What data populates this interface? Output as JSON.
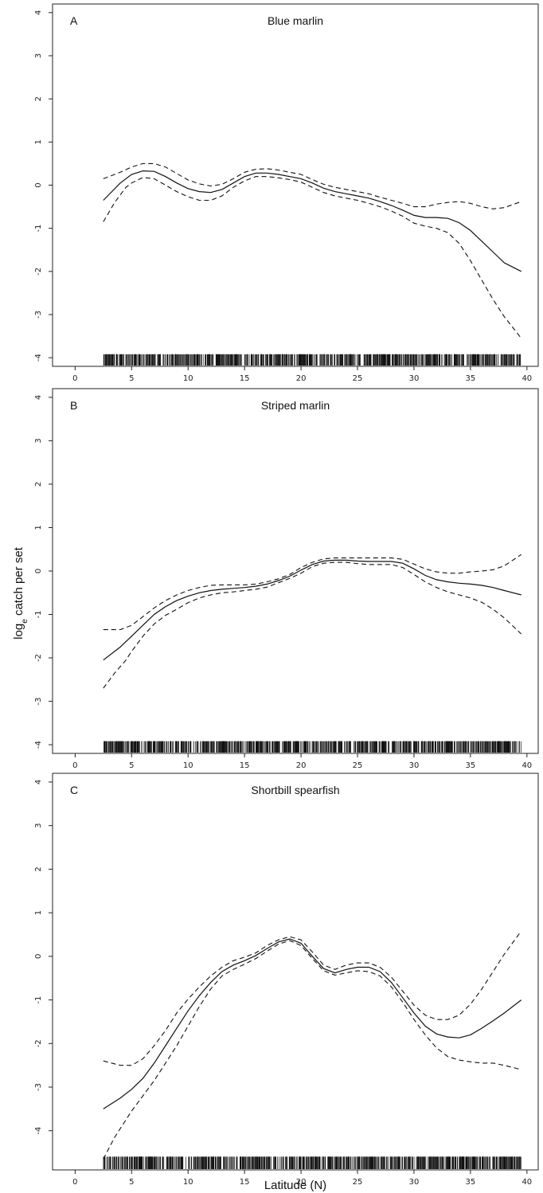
{
  "figure": {
    "xlabel": "Latitude (N)",
    "ylabel_main": "log",
    "ylabel_sub": "e",
    "ylabel_rest": " catch per set"
  },
  "chart_data": [
    {
      "type": "line",
      "panel": "A",
      "title": "Blue marlin",
      "xlim": [
        -2,
        41
      ],
      "ylim": [
        -4.2,
        4.2
      ],
      "xticks": [
        0,
        5,
        10,
        15,
        20,
        25,
        30,
        35,
        40
      ],
      "yticks": [
        -4,
        -3,
        -2,
        -1,
        0,
        1,
        2,
        3,
        4
      ],
      "grid": false,
      "series": [
        {
          "style": "solid",
          "x": [
            2.5,
            4,
            5,
            6,
            7,
            8,
            9,
            10,
            11,
            12,
            13,
            14,
            15,
            16,
            17,
            18,
            19,
            20,
            21,
            22,
            23,
            24,
            25,
            26,
            27,
            28,
            29,
            30,
            31,
            32,
            33,
            34,
            35,
            36,
            37,
            38,
            39.5
          ],
          "y": [
            -0.35,
            0.05,
            0.25,
            0.33,
            0.32,
            0.2,
            0.05,
            -0.08,
            -0.15,
            -0.17,
            -0.1,
            0.05,
            0.2,
            0.28,
            0.28,
            0.25,
            0.2,
            0.15,
            0.05,
            -0.07,
            -0.15,
            -0.2,
            -0.25,
            -0.3,
            -0.38,
            -0.47,
            -0.58,
            -0.7,
            -0.75,
            -0.75,
            -0.77,
            -0.87,
            -1.05,
            -1.3,
            -1.55,
            -1.8,
            -2.0
          ]
        },
        {
          "style": "dashed",
          "x": [
            2.5,
            4,
            5,
            6,
            7,
            8,
            9,
            10,
            11,
            12,
            13,
            14,
            15,
            16,
            17,
            18,
            19,
            20,
            21,
            22,
            23,
            24,
            25,
            26,
            27,
            28,
            29,
            30,
            31,
            32,
            33,
            34,
            35,
            36,
            37,
            38,
            39.5
          ],
          "y": [
            0.15,
            0.3,
            0.42,
            0.5,
            0.5,
            0.42,
            0.27,
            0.12,
            0.03,
            -0.02,
            0.02,
            0.15,
            0.3,
            0.37,
            0.38,
            0.35,
            0.3,
            0.25,
            0.13,
            0.02,
            -0.05,
            -0.1,
            -0.15,
            -0.2,
            -0.28,
            -0.35,
            -0.42,
            -0.5,
            -0.5,
            -0.44,
            -0.4,
            -0.38,
            -0.42,
            -0.5,
            -0.55,
            -0.52,
            -0.38
          ]
        },
        {
          "style": "dashed",
          "x": [
            2.5,
            3.5,
            4.5,
            5,
            6,
            7,
            8,
            9,
            10,
            11,
            12,
            13,
            14,
            15,
            16,
            17,
            18,
            19,
            20,
            21,
            22,
            23,
            24,
            25,
            26,
            27,
            28,
            29,
            30,
            31,
            32,
            33,
            34,
            35,
            36,
            37,
            38,
            39.5
          ],
          "y": [
            -0.85,
            -0.4,
            -0.05,
            0.05,
            0.18,
            0.15,
            0.0,
            -0.15,
            -0.27,
            -0.35,
            -0.35,
            -0.25,
            -0.05,
            0.1,
            0.2,
            0.2,
            0.17,
            0.13,
            0.07,
            -0.05,
            -0.17,
            -0.25,
            -0.3,
            -0.35,
            -0.42,
            -0.5,
            -0.6,
            -0.72,
            -0.88,
            -0.95,
            -1.0,
            -1.1,
            -1.35,
            -1.75,
            -2.2,
            -2.65,
            -3.05,
            -3.55
          ]
        }
      ]
    },
    {
      "type": "line",
      "panel": "B",
      "title": "Striped marlin",
      "xlim": [
        -2,
        41
      ],
      "ylim": [
        -4.2,
        4.2
      ],
      "xticks": [
        0,
        5,
        10,
        15,
        20,
        25,
        30,
        35,
        40
      ],
      "yticks": [
        -4,
        -3,
        -2,
        -1,
        0,
        1,
        2,
        3,
        4
      ],
      "grid": false,
      "series": [
        {
          "style": "solid",
          "x": [
            2.5,
            4,
            5,
            6,
            7,
            8,
            9,
            10,
            11,
            12,
            13,
            14,
            15,
            16,
            17,
            18,
            19,
            20,
            21,
            22,
            23,
            24,
            25,
            26,
            27,
            28,
            29,
            30,
            31,
            32,
            33,
            34,
            35,
            36,
            37,
            38,
            39.5
          ],
          "y": [
            -2.05,
            -1.75,
            -1.5,
            -1.25,
            -1.0,
            -0.82,
            -0.68,
            -0.58,
            -0.5,
            -0.45,
            -0.42,
            -0.4,
            -0.38,
            -0.35,
            -0.3,
            -0.22,
            -0.12,
            0.02,
            0.15,
            0.23,
            0.25,
            0.25,
            0.23,
            0.22,
            0.22,
            0.22,
            0.18,
            0.05,
            -0.1,
            -0.2,
            -0.25,
            -0.28,
            -0.3,
            -0.33,
            -0.38,
            -0.45,
            -0.55
          ]
        },
        {
          "style": "dashed",
          "x": [
            2.5,
            4,
            5,
            6,
            7,
            8,
            9,
            10,
            11,
            12,
            13,
            14,
            15,
            16,
            17,
            18,
            19,
            20,
            21,
            22,
            23,
            24,
            25,
            26,
            27,
            28,
            29,
            30,
            31,
            32,
            33,
            34,
            35,
            36,
            37,
            38,
            39.5
          ],
          "y": [
            -1.35,
            -1.35,
            -1.25,
            -1.05,
            -0.85,
            -0.68,
            -0.55,
            -0.45,
            -0.38,
            -0.33,
            -0.32,
            -0.32,
            -0.32,
            -0.3,
            -0.25,
            -0.18,
            -0.08,
            0.08,
            0.2,
            0.28,
            0.3,
            0.3,
            0.3,
            0.3,
            0.3,
            0.3,
            0.27,
            0.16,
            0.05,
            -0.02,
            -0.05,
            -0.05,
            -0.02,
            0.0,
            0.03,
            0.12,
            0.38
          ]
        },
        {
          "style": "dashed",
          "x": [
            2.5,
            3.5,
            4.5,
            5,
            6,
            7,
            8,
            9,
            10,
            11,
            12,
            13,
            14,
            15,
            16,
            17,
            18,
            19,
            20,
            21,
            22,
            23,
            24,
            25,
            26,
            27,
            28,
            29,
            30,
            31,
            32,
            33,
            34,
            35,
            36,
            37,
            38,
            39.5
          ],
          "y": [
            -2.7,
            -2.35,
            -2.05,
            -1.85,
            -1.5,
            -1.22,
            -1.02,
            -0.88,
            -0.73,
            -0.62,
            -0.55,
            -0.5,
            -0.48,
            -0.45,
            -0.42,
            -0.37,
            -0.27,
            -0.17,
            -0.05,
            0.1,
            0.18,
            0.2,
            0.2,
            0.17,
            0.15,
            0.15,
            0.15,
            0.08,
            -0.08,
            -0.25,
            -0.38,
            -0.48,
            -0.55,
            -0.62,
            -0.72,
            -0.88,
            -1.08,
            -1.45
          ]
        }
      ]
    },
    {
      "type": "line",
      "panel": "C",
      "title": "Shortbill spearfish",
      "xlim": [
        -2,
        41
      ],
      "ylim": [
        -4.9,
        4.2
      ],
      "xticks": [
        0,
        5,
        10,
        15,
        20,
        25,
        30,
        35,
        40
      ],
      "yticks": [
        -4,
        -3,
        -2,
        -1,
        0,
        1,
        2,
        3,
        4
      ],
      "grid": false,
      "series": [
        {
          "style": "solid",
          "x": [
            2.5,
            4,
            5,
            6,
            7,
            8,
            9,
            10,
            11,
            12,
            13,
            14,
            15,
            16,
            17,
            18,
            19,
            20,
            21,
            22,
            23,
            24,
            25,
            26,
            27,
            28,
            29,
            30,
            31,
            32,
            33,
            34,
            35,
            36,
            37,
            38,
            39.5
          ],
          "y": [
            -3.5,
            -3.25,
            -3.05,
            -2.8,
            -2.45,
            -2.05,
            -1.65,
            -1.25,
            -0.9,
            -0.6,
            -0.35,
            -0.2,
            -0.1,
            0.02,
            0.18,
            0.33,
            0.4,
            0.3,
            0.0,
            -0.28,
            -0.38,
            -0.3,
            -0.25,
            -0.25,
            -0.35,
            -0.6,
            -0.95,
            -1.3,
            -1.6,
            -1.78,
            -1.85,
            -1.87,
            -1.8,
            -1.65,
            -1.48,
            -1.3,
            -1.0
          ]
        },
        {
          "style": "dashed",
          "x": [
            2.5,
            4,
            5,
            6,
            7,
            8,
            9,
            10,
            11,
            12,
            13,
            14,
            15,
            16,
            17,
            18,
            19,
            20,
            21,
            22,
            23,
            24,
            25,
            26,
            27,
            28,
            29,
            30,
            31,
            32,
            33,
            34,
            35,
            36,
            37,
            38,
            39.5
          ],
          "y": [
            -2.4,
            -2.5,
            -2.5,
            -2.35,
            -2.05,
            -1.7,
            -1.3,
            -0.98,
            -0.7,
            -0.45,
            -0.25,
            -0.1,
            -0.02,
            0.08,
            0.25,
            0.38,
            0.45,
            0.38,
            0.1,
            -0.2,
            -0.3,
            -0.2,
            -0.15,
            -0.15,
            -0.25,
            -0.48,
            -0.8,
            -1.12,
            -1.35,
            -1.45,
            -1.45,
            -1.35,
            -1.1,
            -0.75,
            -0.35,
            0.05,
            0.58
          ]
        },
        {
          "style": "dashed",
          "x": [
            2.5,
            3.5,
            4.5,
            5,
            6,
            7,
            8,
            9,
            10,
            11,
            12,
            13,
            14,
            15,
            16,
            17,
            18,
            19,
            20,
            21,
            22,
            23,
            24,
            25,
            26,
            27,
            28,
            29,
            30,
            31,
            32,
            33,
            34,
            35,
            36,
            37,
            38,
            39.5
          ],
          "y": [
            -4.65,
            -4.15,
            -3.75,
            -3.55,
            -3.2,
            -2.85,
            -2.45,
            -2.05,
            -1.6,
            -1.15,
            -0.75,
            -0.45,
            -0.3,
            -0.18,
            -0.05,
            0.12,
            0.28,
            0.36,
            0.25,
            -0.05,
            -0.33,
            -0.43,
            -0.38,
            -0.33,
            -0.35,
            -0.45,
            -0.7,
            -1.05,
            -1.45,
            -1.8,
            -2.1,
            -2.3,
            -2.38,
            -2.42,
            -2.45,
            -2.45,
            -2.5,
            -2.6
          ]
        }
      ]
    }
  ]
}
